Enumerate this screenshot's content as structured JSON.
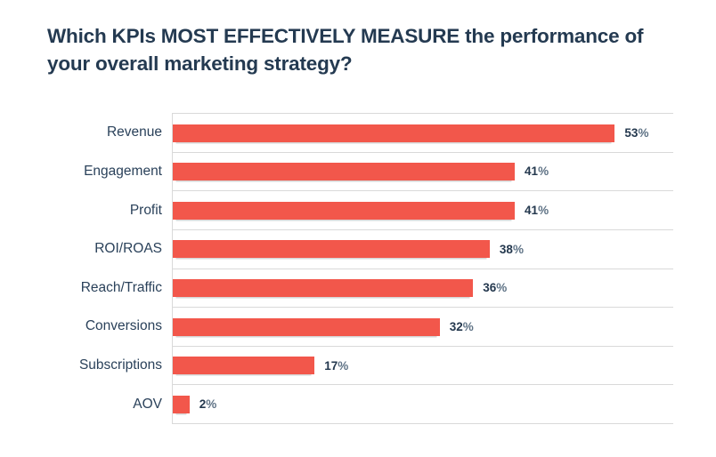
{
  "title": {
    "full": "Which KPIs MOST EFFECTIVELY MEASURE the performance of your overall marketing strategy?",
    "lines": [
      "Which KPIs MOST EFFECTIVELY MEASURE the performance of",
      "your overall marketing strategy?"
    ]
  },
  "chart_data": {
    "type": "bar",
    "orientation": "horizontal",
    "title": "Which KPIs MOST EFFECTIVELY MEASURE the performance of your overall marketing strategy?",
    "categories": [
      "Revenue",
      "Engagement",
      "Profit",
      "ROI/ROAS",
      "Reach/Traffic",
      "Conversions",
      "Subscriptions",
      "AOV"
    ],
    "values": [
      53,
      41,
      41,
      38,
      36,
      32,
      17,
      2
    ],
    "value_labels": [
      "53",
      "41",
      "41",
      "38",
      "36",
      "32",
      "17",
      "2"
    ],
    "value_suffix": "%",
    "xlabel": "",
    "ylabel": "",
    "xlim": [
      0,
      60
    ],
    "grid": "row-separators-only",
    "legend": "none",
    "colors": {
      "bar": "#f2574b",
      "title_text": "#243a51",
      "category_text": "#2a415a",
      "value_number_text": "#24384e",
      "value_suffix_text": "#5f7386",
      "gridline": "#d9d9d9",
      "background": "#ffffff"
    }
  }
}
